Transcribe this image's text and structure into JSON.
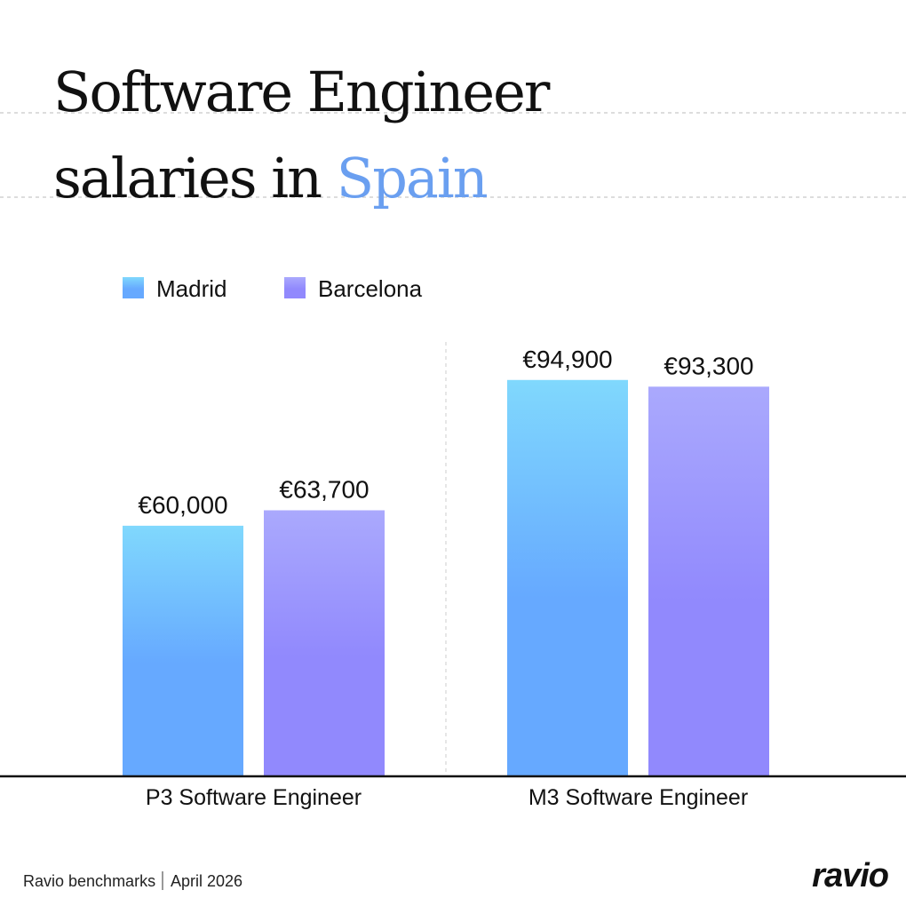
{
  "chart_data": {
    "type": "bar",
    "title_lines": [
      "Software Engineer",
      "salaries in"
    ],
    "title_highlight": "Spain",
    "categories": [
      "P3 Software Engineer",
      "M3 Software Engineer"
    ],
    "series": [
      {
        "name": "Madrid",
        "color": "#66a9ff",
        "values": [
          60000,
          94900
        ],
        "value_labels": [
          "€60,000",
          "€94,900"
        ]
      },
      {
        "name": "Barcelona",
        "color": "#9189fd",
        "values": [
          63700,
          93300
        ],
        "value_labels": [
          "€63,700",
          "€93,300"
        ]
      }
    ],
    "ylim": [
      0,
      104000
    ],
    "source": "Ravio benchmarks",
    "date": "April 2026",
    "brand": "ravio"
  }
}
